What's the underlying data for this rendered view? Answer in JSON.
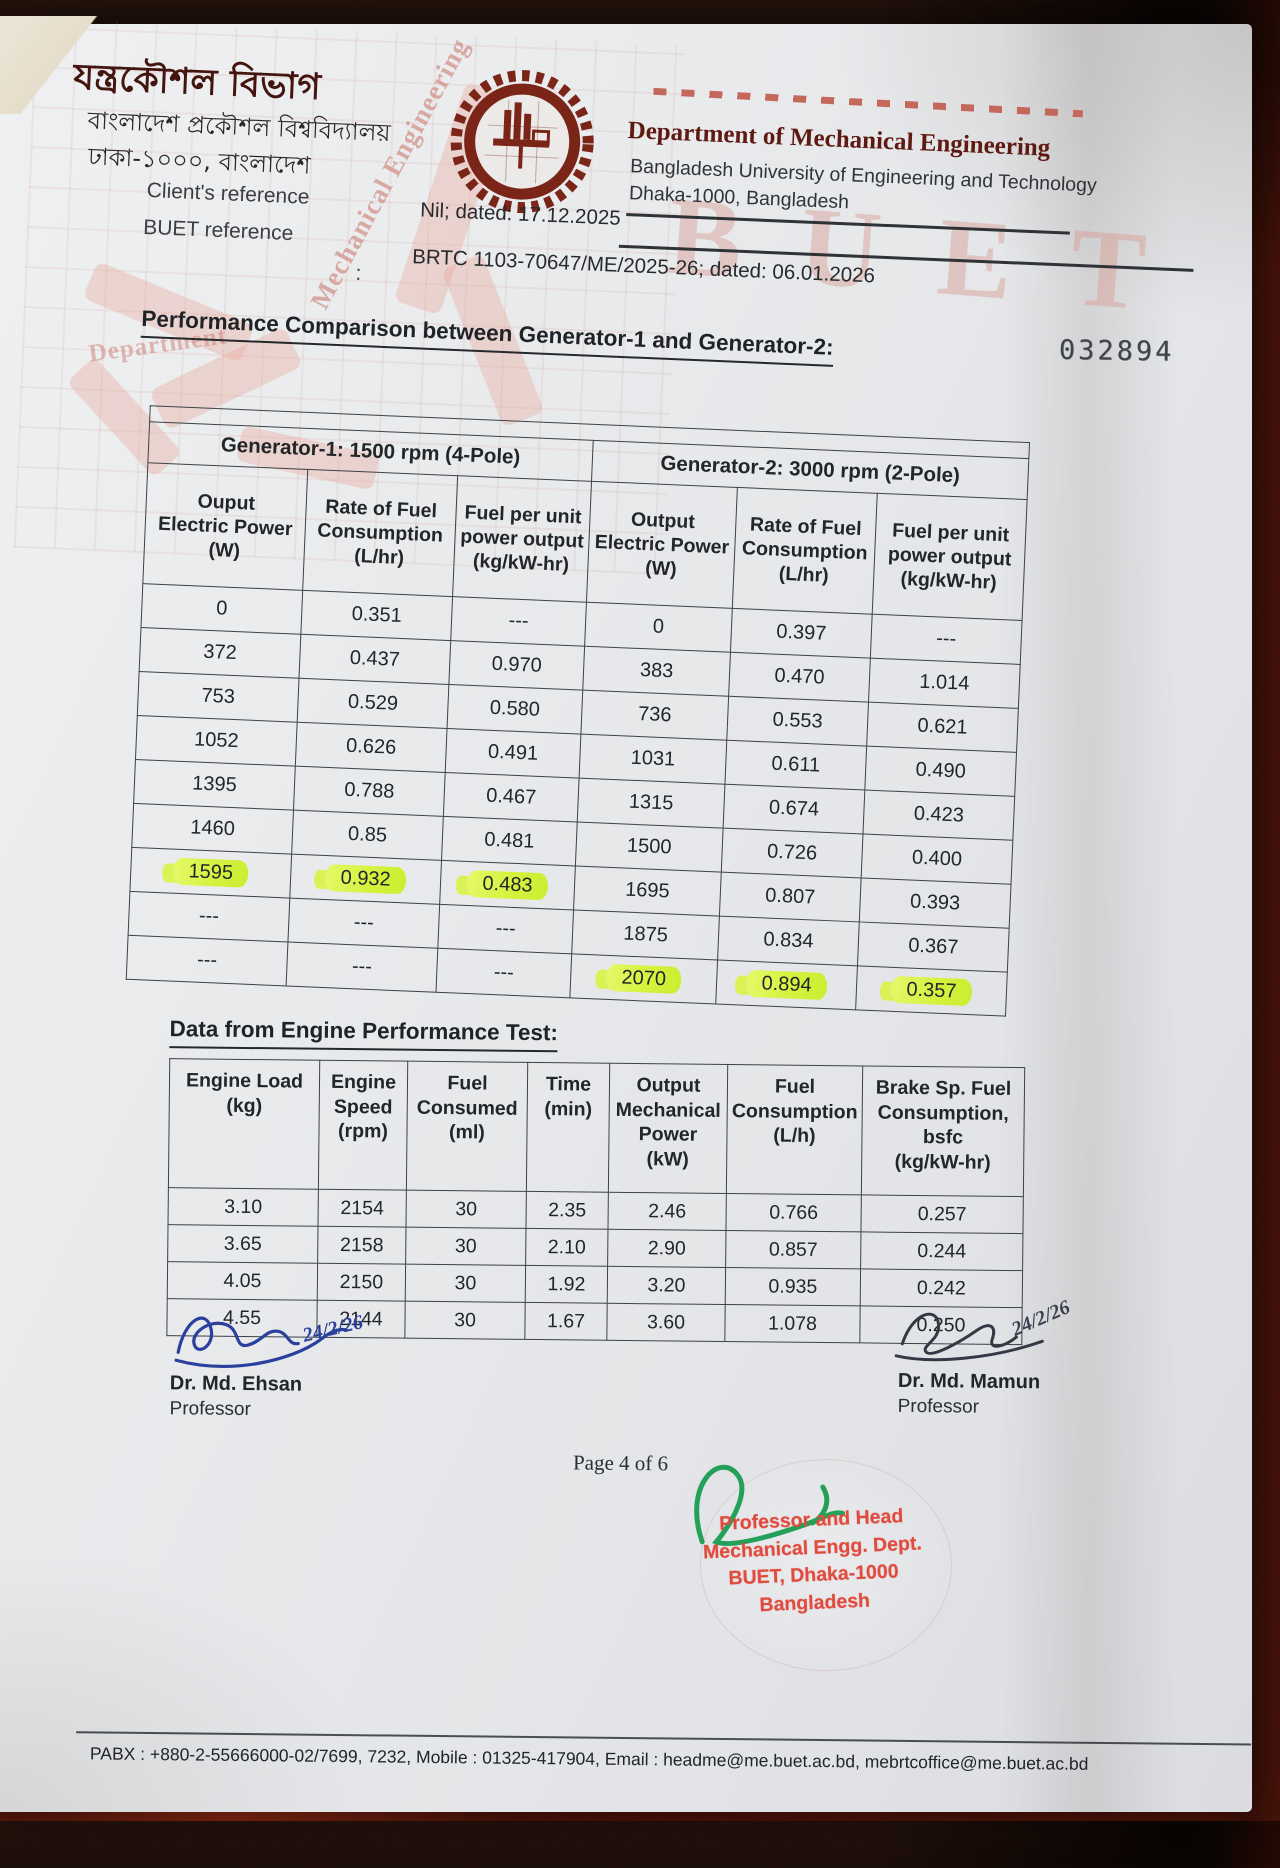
{
  "header": {
    "dept_bn": "যন্ত্রকৌশল বিভাগ",
    "univ_bn": "বাংলাদেশ প্রকৌশল বিশ্ববিদ্যালয়",
    "city_bn": "ঢাকা-১০০০, বাংলাদেশ",
    "client_ref_label": "Client's reference",
    "buet_ref_label": "BUET reference",
    "ref_colon": ":",
    "client_ref_value": "Nil; dated: 17.12.2025",
    "buet_ref_value": "BRTC 1103-70647/ME/2025-26; dated: 06.01.2026",
    "dept_en": "Department of Mechanical Engineering",
    "univ_en": "Bangladesh University of Engineering and Technology",
    "city_en": "Dhaka-1000, Bangladesh",
    "serial_number": "032894",
    "watermark_text_1": "Mechanical Engineering",
    "watermark_text_2": "Department",
    "watermark_buet": "BUET"
  },
  "generator_table": {
    "title": "Performance Comparison between Generator-1 and Generator-2:",
    "group1": "Generator-1: 1500 rpm (4-Pole)",
    "group2": "Generator-2: 3000 rpm (2-Pole)",
    "columns": [
      "Ouput\nElectric Power\n(W)",
      "Rate of Fuel\nConsumption\n(L/hr)",
      "Fuel per unit\npower output\n(kg/kW-hr)",
      "Output\nElectric Power\n(W)",
      "Rate of Fuel\nConsumption\n(L/hr)",
      "Fuel per unit\npower output\n(kg/kW-hr)"
    ],
    "rows": [
      [
        "0",
        "0.351",
        "---",
        "0",
        "0.397",
        "---"
      ],
      [
        "372",
        "0.437",
        "0.970",
        "383",
        "0.470",
        "1.014"
      ],
      [
        "753",
        "0.529",
        "0.580",
        "736",
        "0.553",
        "0.621"
      ],
      [
        "1052",
        "0.626",
        "0.491",
        "1031",
        "0.611",
        "0.490"
      ],
      [
        "1395",
        "0.788",
        "0.467",
        "1315",
        "0.674",
        "0.423"
      ],
      [
        "1460",
        "0.85",
        "0.481",
        "1500",
        "0.726",
        "0.400"
      ],
      [
        "1595",
        "0.932",
        "0.483",
        "1695",
        "0.807",
        "0.393"
      ],
      [
        "---",
        "---",
        "---",
        "1875",
        "0.834",
        "0.367"
      ],
      [
        "---",
        "---",
        "---",
        "2070",
        "0.894",
        "0.357"
      ]
    ],
    "highlights": [
      [
        6,
        0
      ],
      [
        6,
        1
      ],
      [
        6,
        2
      ],
      [
        8,
        3
      ],
      [
        8,
        4
      ],
      [
        8,
        5
      ]
    ]
  },
  "engine_table": {
    "title": "Data from Engine Performance Test:",
    "columns": [
      "Engine Load\n(kg)",
      "Engine\nSpeed\n(rpm)",
      "Fuel\nConsumed\n(ml)",
      "Time\n(min)",
      "Output\nMechanical\nPower\n(kW)",
      "Fuel\nConsumption\n(L/h)",
      "Brake Sp. Fuel\nConsumption, bsfc\n(kg/kW-hr)"
    ],
    "rows": [
      [
        "3.10",
        "2154",
        "30",
        "2.35",
        "2.46",
        "0.766",
        "0.257"
      ],
      [
        "3.65",
        "2158",
        "30",
        "2.10",
        "2.90",
        "0.857",
        "0.244"
      ],
      [
        "4.05",
        "2150",
        "30",
        "1.92",
        "3.20",
        "0.935",
        "0.242"
      ],
      [
        "4.55",
        "2144",
        "30",
        "1.67",
        "3.60",
        "1.078",
        "0.250"
      ]
    ]
  },
  "signatures": {
    "left": {
      "name": "Dr. Md. Ehsan",
      "title": "Professor",
      "date": "24/2/26"
    },
    "right": {
      "name": "Dr. Md. Mamun",
      "title": "Professor",
      "date": "24/2/26"
    }
  },
  "page_label": "Page 4 of 6",
  "stamp": {
    "line1": "Professor and Head",
    "line2": "Mechanical Engg. Dept.",
    "line3": "BUET, Dhaka-1000",
    "line4": "Bangladesh"
  },
  "footer": {
    "contact": "PABX : +880-2-55666000-02/7699, 7232, Mobile : 01325-417904, Email : headme@me.buet.ac.bd, mebrtcoffice@me.buet.ac.bd"
  }
}
